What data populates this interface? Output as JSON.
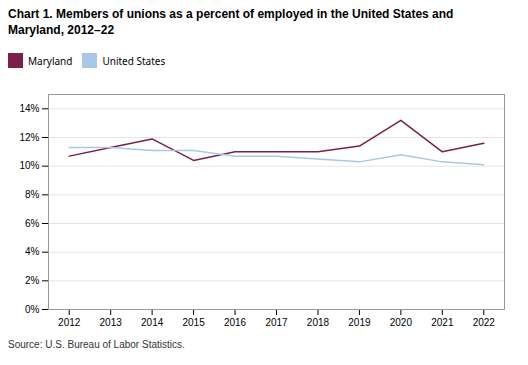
{
  "chart_data": {
    "type": "line",
    "title": "Chart 1. Members of unions as a percent of employed in the United States and\nMaryland, 2012–22",
    "caption": "Source: U.S. Bureau of Labor Statistics.",
    "x": [
      2012,
      2013,
      2014,
      2015,
      2016,
      2017,
      2018,
      2019,
      2020,
      2021,
      2022
    ],
    "series": [
      {
        "name": "Maryland",
        "color": "#7b1f4b",
        "values": [
          10.7,
          11.3,
          11.9,
          10.4,
          11.0,
          11.0,
          11.0,
          11.4,
          13.2,
          11.0,
          11.6
        ]
      },
      {
        "name": "United States",
        "color": "#a8c8e8",
        "values": [
          11.3,
          11.3,
          11.1,
          11.1,
          10.7,
          10.7,
          10.5,
          10.3,
          10.8,
          10.3,
          10.1
        ]
      }
    ],
    "xlim": [
      2011.5,
      2022.5
    ],
    "xticks": [
      2012,
      2013,
      2014,
      2015,
      2016,
      2017,
      2018,
      2019,
      2020,
      2021,
      2022
    ],
    "ylim": [
      0,
      15
    ],
    "yticks": [
      {
        "value": 0,
        "label": "0%"
      },
      {
        "value": 2,
        "label": "2%"
      },
      {
        "value": 4,
        "label": "4%"
      },
      {
        "value": 6,
        "label": "6%"
      },
      {
        "value": 8,
        "label": "8%"
      },
      {
        "value": 10,
        "label": "10%"
      },
      {
        "value": 12,
        "label": "12%"
      },
      {
        "value": 14,
        "label": "14%"
      }
    ],
    "grid": true,
    "legend": "top"
  }
}
